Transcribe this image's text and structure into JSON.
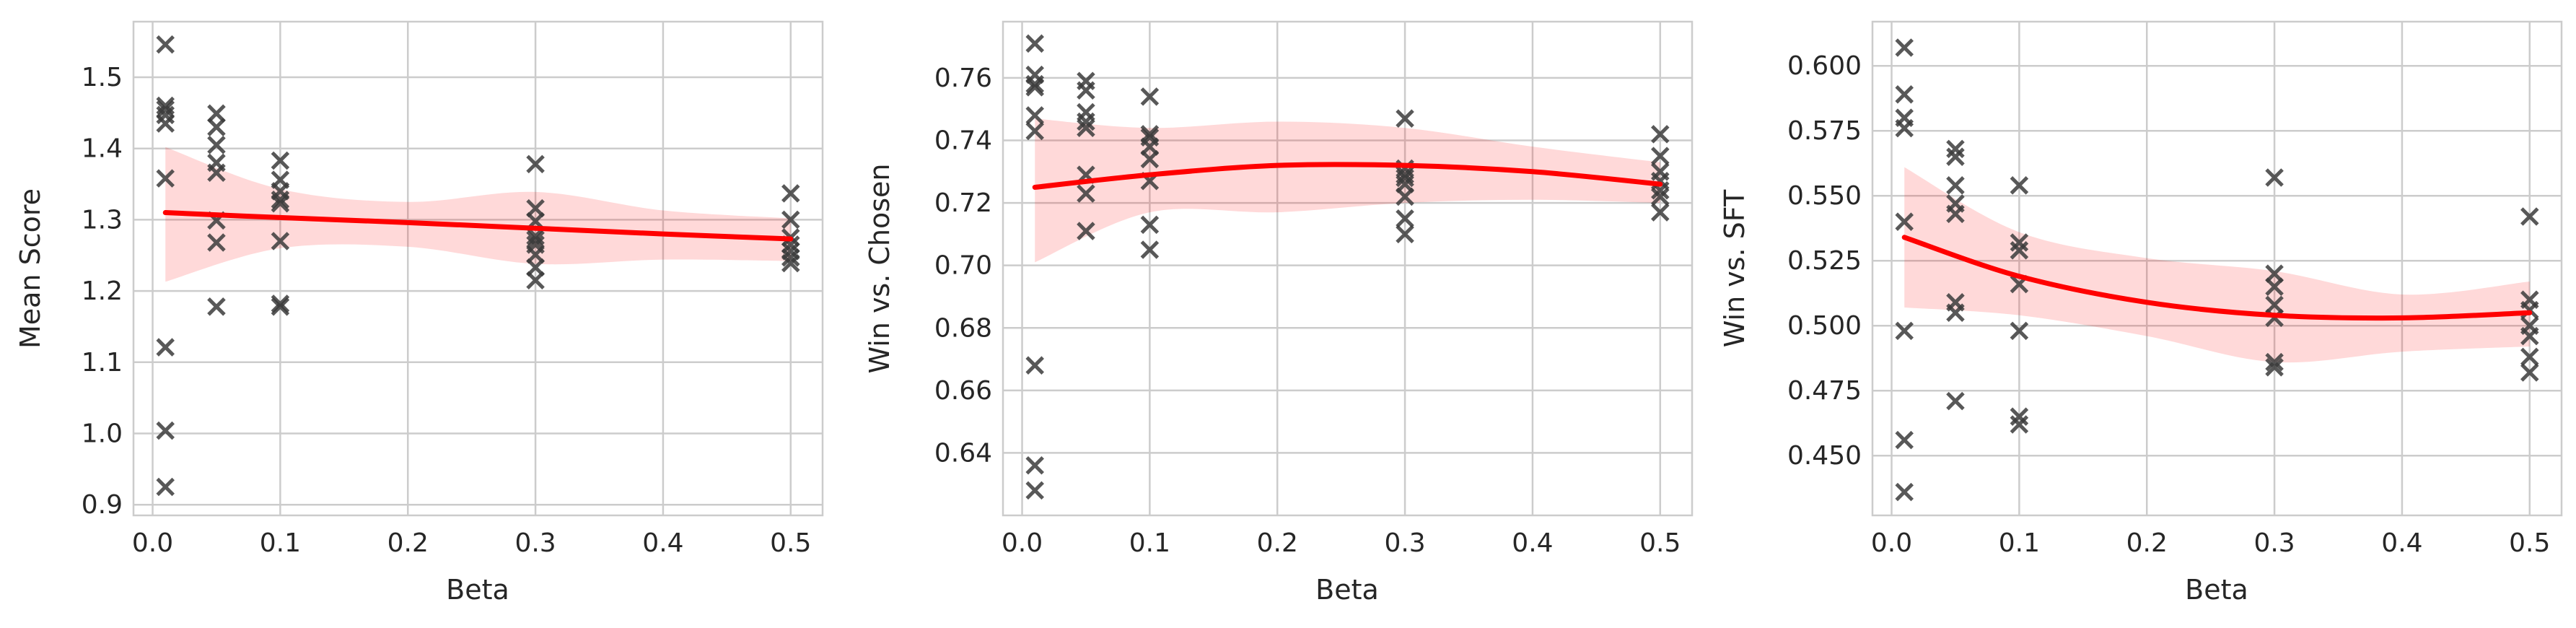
{
  "chart_data": [
    {
      "type": "scatter",
      "xlabel": "Beta",
      "ylabel": "Mean Score",
      "xlim": [
        -0.015,
        0.525
      ],
      "ylim": [
        0.885,
        1.578
      ],
      "xticks": [
        0.0,
        0.1,
        0.2,
        0.3,
        0.4,
        0.5
      ],
      "xtick_labels": [
        "0.0",
        "0.1",
        "0.2",
        "0.3",
        "0.4",
        "0.5"
      ],
      "yticks": [
        0.9,
        1.0,
        1.1,
        1.2,
        1.3,
        1.4,
        1.5
      ],
      "ytick_labels": [
        "0.9",
        "1.0",
        "1.1",
        "1.2",
        "1.3",
        "1.4",
        "1.5"
      ],
      "grid": true,
      "points": [
        [
          0.01,
          1.546
        ],
        [
          0.01,
          1.46
        ],
        [
          0.01,
          1.455
        ],
        [
          0.01,
          1.447
        ],
        [
          0.01,
          1.435
        ],
        [
          0.01,
          1.358
        ],
        [
          0.01,
          1.121
        ],
        [
          0.01,
          1.004
        ],
        [
          0.01,
          0.925
        ],
        [
          0.05,
          1.449
        ],
        [
          0.05,
          1.43
        ],
        [
          0.05,
          1.405
        ],
        [
          0.05,
          1.38
        ],
        [
          0.05,
          1.366
        ],
        [
          0.05,
          1.299
        ],
        [
          0.05,
          1.268
        ],
        [
          0.05,
          1.178
        ],
        [
          0.1,
          1.383
        ],
        [
          0.1,
          1.356
        ],
        [
          0.1,
          1.34
        ],
        [
          0.1,
          1.328
        ],
        [
          0.1,
          1.323
        ],
        [
          0.1,
          1.27
        ],
        [
          0.1,
          1.182
        ],
        [
          0.1,
          1.178
        ],
        [
          0.3,
          1.378
        ],
        [
          0.3,
          1.316
        ],
        [
          0.3,
          1.298
        ],
        [
          0.3,
          1.277
        ],
        [
          0.3,
          1.272
        ],
        [
          0.3,
          1.265
        ],
        [
          0.3,
          1.251
        ],
        [
          0.3,
          1.233
        ],
        [
          0.3,
          1.215
        ],
        [
          0.5,
          1.337
        ],
        [
          0.5,
          1.3
        ],
        [
          0.5,
          1.275
        ],
        [
          0.5,
          1.265
        ],
        [
          0.5,
          1.256
        ],
        [
          0.5,
          1.247
        ],
        [
          0.5,
          1.239
        ]
      ],
      "fit": {
        "x": [
          0.01,
          0.1,
          0.2,
          0.3,
          0.4,
          0.5
        ],
        "y": [
          1.31,
          1.303,
          1.296,
          1.288,
          1.28,
          1.273
        ],
        "ci_upper": [
          1.402,
          1.343,
          1.325,
          1.339,
          1.313,
          1.302
        ],
        "ci_lower": [
          1.213,
          1.26,
          1.262,
          1.238,
          1.244,
          1.242
        ]
      }
    },
    {
      "type": "scatter",
      "xlabel": "Beta",
      "ylabel": "Win vs. Chosen",
      "xlim": [
        -0.015,
        0.525
      ],
      "ylim": [
        0.62,
        0.778
      ],
      "xticks": [
        0.0,
        0.1,
        0.2,
        0.3,
        0.4,
        0.5
      ],
      "xtick_labels": [
        "0.0",
        "0.1",
        "0.2",
        "0.3",
        "0.4",
        "0.5"
      ],
      "yticks": [
        0.64,
        0.66,
        0.68,
        0.7,
        0.72,
        0.74,
        0.76
      ],
      "ytick_labels": [
        "0.64",
        "0.66",
        "0.68",
        "0.70",
        "0.72",
        "0.74",
        "0.76"
      ],
      "grid": true,
      "points": [
        [
          0.01,
          0.771
        ],
        [
          0.01,
          0.761
        ],
        [
          0.01,
          0.758
        ],
        [
          0.01,
          0.757
        ],
        [
          0.01,
          0.748
        ],
        [
          0.01,
          0.743
        ],
        [
          0.01,
          0.668
        ],
        [
          0.01,
          0.636
        ],
        [
          0.01,
          0.628
        ],
        [
          0.05,
          0.759
        ],
        [
          0.05,
          0.756
        ],
        [
          0.05,
          0.749
        ],
        [
          0.05,
          0.746
        ],
        [
          0.05,
          0.744
        ],
        [
          0.05,
          0.729
        ],
        [
          0.05,
          0.723
        ],
        [
          0.05,
          0.711
        ],
        [
          0.1,
          0.754
        ],
        [
          0.1,
          0.742
        ],
        [
          0.1,
          0.741
        ],
        [
          0.1,
          0.738
        ],
        [
          0.1,
          0.734
        ],
        [
          0.1,
          0.727
        ],
        [
          0.1,
          0.713
        ],
        [
          0.1,
          0.705
        ],
        [
          0.3,
          0.747
        ],
        [
          0.3,
          0.731
        ],
        [
          0.3,
          0.729
        ],
        [
          0.3,
          0.728
        ],
        [
          0.3,
          0.726
        ],
        [
          0.3,
          0.722
        ],
        [
          0.3,
          0.715
        ],
        [
          0.3,
          0.71
        ],
        [
          0.5,
          0.742
        ],
        [
          0.5,
          0.735
        ],
        [
          0.5,
          0.73
        ],
        [
          0.5,
          0.727
        ],
        [
          0.5,
          0.724
        ],
        [
          0.5,
          0.722
        ],
        [
          0.5,
          0.717
        ]
      ],
      "fit": {
        "x": [
          0.01,
          0.1,
          0.2,
          0.3,
          0.4,
          0.5
        ],
        "y": [
          0.725,
          0.729,
          0.732,
          0.732,
          0.73,
          0.726
        ],
        "ci_upper": [
          0.747,
          0.744,
          0.746,
          0.744,
          0.738,
          0.733
        ],
        "ci_lower": [
          0.701,
          0.717,
          0.717,
          0.72,
          0.721,
          0.72
        ]
      }
    },
    {
      "type": "scatter",
      "xlabel": "Beta",
      "ylabel": "Win vs. SFT",
      "xlim": [
        -0.015,
        0.525
      ],
      "ylim": [
        0.427,
        0.617
      ],
      "xticks": [
        0.0,
        0.1,
        0.2,
        0.3,
        0.4,
        0.5
      ],
      "xtick_labels": [
        "0.0",
        "0.1",
        "0.2",
        "0.3",
        "0.4",
        "0.5"
      ],
      "yticks": [
        0.45,
        0.475,
        0.5,
        0.525,
        0.55,
        0.575,
        0.6
      ],
      "ytick_labels": [
        "0.450",
        "0.475",
        "0.500",
        "0.525",
        "0.550",
        "0.575",
        "0.600"
      ],
      "grid": true,
      "points": [
        [
          0.01,
          0.607
        ],
        [
          0.01,
          0.589
        ],
        [
          0.01,
          0.58
        ],
        [
          0.01,
          0.576
        ],
        [
          0.01,
          0.54
        ],
        [
          0.01,
          0.498
        ],
        [
          0.01,
          0.456
        ],
        [
          0.01,
          0.436
        ],
        [
          0.05,
          0.568
        ],
        [
          0.05,
          0.565
        ],
        [
          0.05,
          0.554
        ],
        [
          0.05,
          0.547
        ],
        [
          0.05,
          0.543
        ],
        [
          0.05,
          0.509
        ],
        [
          0.05,
          0.505
        ],
        [
          0.05,
          0.471
        ],
        [
          0.1,
          0.554
        ],
        [
          0.1,
          0.532
        ],
        [
          0.1,
          0.529
        ],
        [
          0.1,
          0.516
        ],
        [
          0.1,
          0.498
        ],
        [
          0.1,
          0.465
        ],
        [
          0.1,
          0.462
        ],
        [
          0.3,
          0.557
        ],
        [
          0.3,
          0.52
        ],
        [
          0.3,
          0.515
        ],
        [
          0.3,
          0.508
        ],
        [
          0.3,
          0.503
        ],
        [
          0.3,
          0.486
        ],
        [
          0.3,
          0.484
        ],
        [
          0.5,
          0.542
        ],
        [
          0.5,
          0.51
        ],
        [
          0.5,
          0.506
        ],
        [
          0.5,
          0.5
        ],
        [
          0.5,
          0.496
        ],
        [
          0.5,
          0.488
        ],
        [
          0.5,
          0.482
        ]
      ],
      "fit": {
        "x": [
          0.01,
          0.1,
          0.2,
          0.3,
          0.4,
          0.5
        ],
        "y": [
          0.534,
          0.519,
          0.509,
          0.504,
          0.503,
          0.505
        ],
        "ci_upper": [
          0.561,
          0.536,
          0.526,
          0.521,
          0.512,
          0.517
        ],
        "ci_lower": [
          0.507,
          0.504,
          0.496,
          0.486,
          0.49,
          0.492
        ]
      }
    }
  ]
}
